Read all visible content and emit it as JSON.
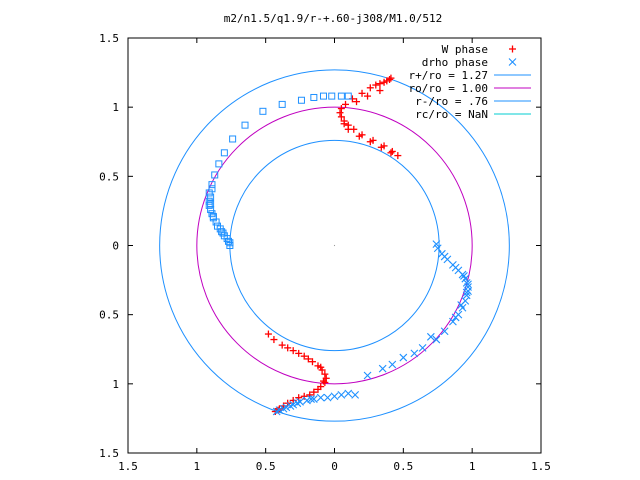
{
  "chart_data": {
    "type": "scatter",
    "title": "m2/n1.5/q1.9/r-+.60-j308/M1.0/512",
    "xlim": [
      -1.5,
      1.5
    ],
    "ylim": [
      -1.5,
      1.5
    ],
    "x_tick_values": [
      -1.5,
      -1,
      -0.5,
      0,
      0.5,
      1,
      1.5
    ],
    "y_tick_values": [
      -1.5,
      -1,
      -0.5,
      0,
      0.5,
      1,
      1.5
    ],
    "x_tick_labels": [
      "1.5",
      "1",
      "0.5",
      "0",
      "0.5",
      "1",
      "1.5"
    ],
    "y_tick_labels": [
      "1.5",
      "1",
      "0.5",
      "0",
      "0.5",
      "1",
      "1.5"
    ],
    "grid": false,
    "legend_position": "top-right",
    "series": [
      {
        "name": "W phase",
        "kind": "points",
        "marker": "plus",
        "color": "#ff0000",
        "points": [
          [
            0.46,
            0.65
          ],
          [
            0.42,
            0.68
          ],
          [
            0.36,
            0.72
          ],
          [
            0.28,
            0.76
          ],
          [
            0.2,
            0.8
          ],
          [
            0.14,
            0.84
          ],
          [
            0.1,
            0.87
          ],
          [
            0.07,
            0.9
          ],
          [
            0.05,
            0.93
          ],
          [
            0.04,
            0.96
          ],
          [
            0.05,
            0.99
          ],
          [
            0.08,
            1.02
          ],
          [
            0.13,
            1.06
          ],
          [
            0.2,
            1.1
          ],
          [
            0.26,
            1.14
          ],
          [
            0.3,
            1.16
          ],
          [
            0.33,
            1.17
          ],
          [
            0.36,
            1.18
          ],
          [
            0.38,
            1.19
          ],
          [
            0.4,
            1.2
          ],
          [
            0.41,
            1.21
          ],
          [
            0.33,
            1.12
          ],
          [
            0.24,
            1.08
          ],
          [
            0.16,
            1.04
          ],
          [
            0.07,
            0.88
          ],
          [
            0.1,
            0.84
          ],
          [
            0.18,
            0.79
          ],
          [
            0.26,
            0.75
          ],
          [
            0.34,
            0.71
          ],
          [
            0.41,
            0.67
          ],
          [
            -0.48,
            -0.64
          ],
          [
            -0.44,
            -0.68
          ],
          [
            -0.38,
            -0.72
          ],
          [
            -0.3,
            -0.76
          ],
          [
            -0.22,
            -0.8
          ],
          [
            -0.16,
            -0.84
          ],
          [
            -0.12,
            -0.87
          ],
          [
            -0.09,
            -0.9
          ],
          [
            -0.07,
            -0.93
          ],
          [
            -0.06,
            -0.96
          ],
          [
            -0.07,
            -0.99
          ],
          [
            -0.1,
            -1.02
          ],
          [
            -0.15,
            -1.06
          ],
          [
            -0.22,
            -1.09
          ],
          [
            -0.3,
            -1.12
          ],
          [
            -0.34,
            -1.14
          ],
          [
            -0.37,
            -1.16
          ],
          [
            -0.4,
            -1.18
          ],
          [
            -0.41,
            -1.19
          ],
          [
            -0.43,
            -1.2
          ],
          [
            -0.34,
            -0.74
          ],
          [
            -0.26,
            -0.78
          ],
          [
            -0.19,
            -0.82
          ],
          [
            -0.1,
            -0.88
          ],
          [
            -0.08,
            -0.98
          ],
          [
            -0.12,
            -1.04
          ],
          [
            -0.18,
            -1.08
          ],
          [
            -0.26,
            -1.1
          ]
        ]
      },
      {
        "name": "drho phase",
        "kind": "points",
        "marker": "cross",
        "color": "#1e90ff",
        "points": [
          [
            0.74,
            0.01
          ],
          [
            0.75,
            -0.02
          ],
          [
            0.78,
            -0.06
          ],
          [
            0.82,
            -0.1
          ],
          [
            0.86,
            -0.14
          ],
          [
            0.9,
            -0.18
          ],
          [
            0.93,
            -0.21
          ],
          [
            0.95,
            -0.24
          ],
          [
            0.96,
            -0.27
          ],
          [
            0.97,
            -0.3
          ],
          [
            0.97,
            -0.33
          ],
          [
            0.96,
            -0.36
          ],
          [
            0.95,
            -0.4
          ],
          [
            0.93,
            -0.45
          ],
          [
            0.9,
            -0.5
          ],
          [
            0.86,
            -0.55
          ],
          [
            0.8,
            -0.62
          ],
          [
            0.74,
            -0.68
          ],
          [
            0.64,
            -0.74
          ],
          [
            0.5,
            -0.81
          ],
          [
            0.35,
            -0.89
          ],
          [
            0.24,
            -0.94
          ],
          [
            0.1,
            -1.07
          ],
          [
            0.05,
            -1.08
          ],
          [
            0.0,
            -1.09
          ],
          [
            -0.05,
            -1.1
          ],
          [
            -0.1,
            -1.1
          ],
          [
            -0.15,
            -1.11
          ],
          [
            -0.2,
            -1.12
          ],
          [
            -0.25,
            -1.13
          ],
          [
            -0.3,
            -1.15
          ],
          [
            -0.35,
            -1.17
          ],
          [
            -0.4,
            -1.19
          ],
          [
            -0.42,
            -1.2
          ],
          [
            0.8,
            -0.08
          ],
          [
            0.88,
            -0.16
          ],
          [
            0.94,
            -0.22
          ],
          [
            0.97,
            -0.28
          ],
          [
            0.96,
            -0.34
          ],
          [
            0.92,
            -0.43
          ],
          [
            0.88,
            -0.52
          ],
          [
            0.7,
            -0.66
          ],
          [
            0.58,
            -0.78
          ],
          [
            0.42,
            -0.86
          ],
          [
            0.15,
            -1.08
          ],
          [
            -0.17,
            -1.11
          ],
          [
            -0.27,
            -1.14
          ],
          [
            -0.32,
            -1.16
          ],
          [
            -0.37,
            -1.18
          ]
        ]
      },
      {
        "name": "",
        "kind": "points",
        "marker": "square",
        "color": "#1e90ff",
        "points": [
          [
            0.1,
            1.08
          ],
          [
            0.05,
            1.08
          ],
          [
            -0.02,
            1.08
          ],
          [
            -0.08,
            1.08
          ],
          [
            -0.15,
            1.07
          ],
          [
            -0.24,
            1.05
          ],
          [
            -0.38,
            1.02
          ],
          [
            -0.52,
            0.97
          ],
          [
            -0.65,
            0.87
          ],
          [
            -0.74,
            0.77
          ],
          [
            -0.8,
            0.67
          ],
          [
            -0.84,
            0.59
          ],
          [
            -0.87,
            0.51
          ],
          [
            -0.89,
            0.44
          ],
          [
            -0.91,
            0.38
          ],
          [
            -0.91,
            0.32
          ],
          [
            -0.9,
            0.26
          ],
          [
            -0.88,
            0.2
          ],
          [
            -0.85,
            0.14
          ],
          [
            -0.81,
            0.09
          ],
          [
            -0.78,
            0.05
          ],
          [
            -0.76,
            0.02
          ],
          [
            -0.76,
            0.0
          ],
          [
            -0.89,
            0.41
          ],
          [
            -0.9,
            0.35
          ],
          [
            -0.91,
            0.29
          ],
          [
            -0.89,
            0.23
          ],
          [
            -0.86,
            0.17
          ],
          [
            -0.83,
            0.12
          ],
          [
            -0.8,
            0.07
          ],
          [
            -0.77,
            0.03
          ],
          [
            -0.9,
            0.3
          ],
          [
            -0.88,
            0.21
          ],
          [
            -0.82,
            0.1
          ]
        ]
      },
      {
        "name": "r+/ro = 1.27",
        "kind": "circle",
        "radius": 1.27,
        "color": "#1e90ff"
      },
      {
        "name": "ro/ro = 1.00",
        "kind": "circle",
        "radius": 1.0,
        "color": "#c000c0"
      },
      {
        "name": "r-/ro = .76",
        "kind": "circle",
        "radius": 0.76,
        "color": "#1e90ff"
      },
      {
        "name": "rc/ro = NaN",
        "kind": "circle",
        "radius": null,
        "color": "#00ced1"
      }
    ]
  }
}
